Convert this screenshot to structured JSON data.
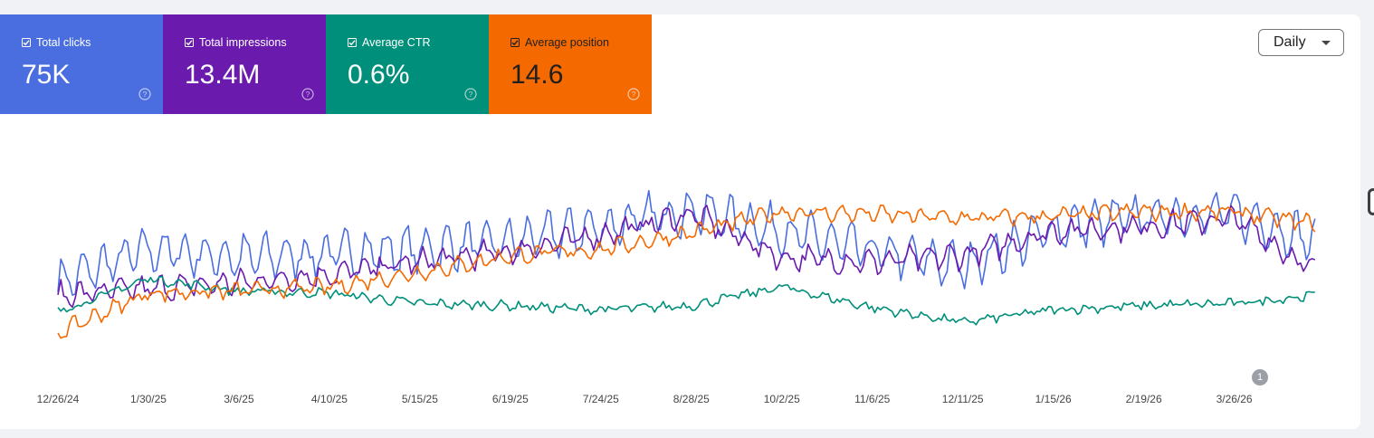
{
  "metrics": [
    {
      "label": "Total clicks",
      "value": "75K",
      "color": "#4a6ee0"
    },
    {
      "label": "Total impressions",
      "value": "13.4M",
      "color": "#6a1aad"
    },
    {
      "label": "Average CTR",
      "value": "0.6%",
      "color": "#008f7a"
    },
    {
      "label": "Average position",
      "value": "14.6",
      "color": "#f56a00"
    }
  ],
  "help_icon": "help-circle-icon",
  "granularity": {
    "selected": "Daily"
  },
  "annotation": {
    "count": "1"
  },
  "chart_data": {
    "type": "line",
    "x_tick_labels": [
      "12/26/24",
      "1/30/25",
      "3/6/25",
      "4/10/25",
      "5/15/25",
      "6/19/25",
      "7/24/25",
      "8/28/25",
      "10/2/25",
      "11/6/25",
      "12/11/25",
      "1/15/26",
      "2/19/26",
      "3/26/26"
    ],
    "x_start": "12/26/24",
    "x_end": "4/27/26",
    "grid": false,
    "series": [
      {
        "name": "Total clicks",
        "color": "#4a6ee0",
        "x": [
          "12/26/24",
          "1/30/25",
          "3/6/25",
          "4/10/25",
          "5/15/25",
          "6/19/25",
          "7/24/25",
          "8/28/25",
          "10/2/25",
          "11/6/25",
          "12/11/25",
          "1/15/26",
          "2/19/26",
          "3/26/26",
          "4/27/26"
        ],
        "values": [
          32,
          48,
          44,
          46,
          48,
          52,
          59,
          67,
          57,
          47,
          40,
          58,
          64,
          65,
          52
        ]
      },
      {
        "name": "Total impressions",
        "color": "#6a1aad",
        "x": [
          "12/26/24",
          "1/30/25",
          "3/6/25",
          "4/10/25",
          "5/15/25",
          "6/19/25",
          "7/24/25",
          "8/28/25",
          "10/2/25",
          "11/6/25",
          "12/11/25",
          "1/15/26",
          "2/19/26",
          "3/26/26",
          "4/27/26"
        ],
        "values": [
          26,
          29,
          32,
          36,
          42,
          47,
          55,
          65,
          44,
          42,
          45,
          57,
          59,
          63,
          37
        ]
      },
      {
        "name": "Average CTR",
        "color": "#008f7a",
        "x": [
          "12/26/24",
          "1/30/25",
          "3/6/25",
          "4/10/25",
          "5/15/25",
          "6/19/25",
          "7/24/25",
          "8/28/25",
          "10/2/25",
          "11/6/25",
          "12/11/25",
          "1/15/26",
          "2/19/26",
          "3/26/26",
          "4/27/26"
        ],
        "values": [
          18,
          34,
          28,
          27,
          22,
          21,
          19,
          21,
          30,
          20,
          13,
          19,
          21,
          22,
          26
        ]
      },
      {
        "name": "Average position",
        "color": "#f56a00",
        "x": [
          "12/26/24",
          "1/30/25",
          "3/6/25",
          "4/10/25",
          "5/15/25",
          "6/19/25",
          "7/24/25",
          "8/28/25",
          "10/2/25",
          "11/6/25",
          "12/11/25",
          "1/15/26",
          "2/19/26",
          "3/26/26",
          "4/27/26"
        ],
        "values": [
          8,
          27,
          28,
          30,
          37,
          45,
          48,
          56,
          66,
          65,
          63,
          64,
          66,
          66,
          60
        ]
      }
    ]
  }
}
